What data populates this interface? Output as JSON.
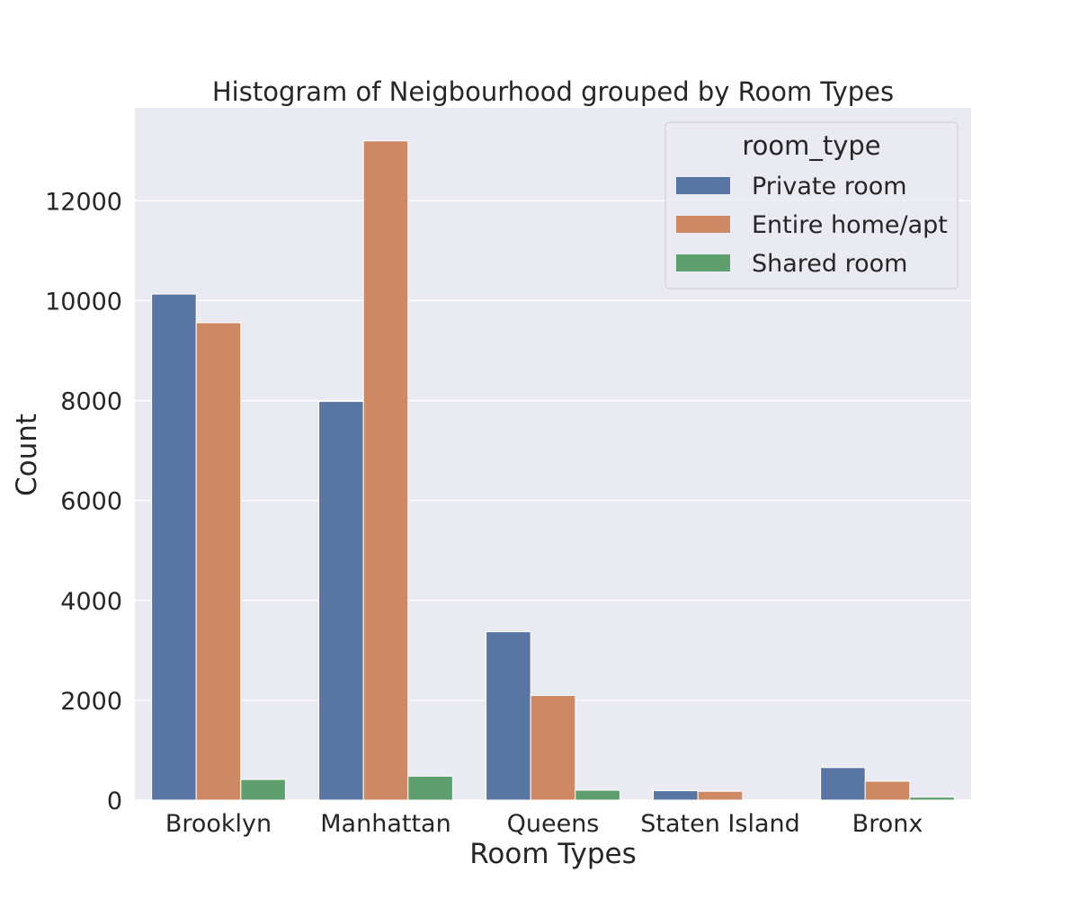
{
  "chart_data": {
    "type": "bar",
    "title": "Histogram of Neigbourhood grouped by Room Types",
    "xlabel": "Room Types",
    "ylabel": "Count",
    "categories": [
      "Brooklyn",
      "Manhattan",
      "Queens",
      "Staten Island",
      "Bronx"
    ],
    "series": [
      {
        "name": "Private room",
        "values": [
          10132,
          7982,
          3372,
          188,
          652
        ]
      },
      {
        "name": "Entire home/apt",
        "values": [
          9559,
          13199,
          2096,
          176,
          379
        ]
      },
      {
        "name": "Shared room",
        "values": [
          413,
          480,
          198,
          9,
          60
        ]
      }
    ],
    "ylim": [
      0,
      13860
    ],
    "yticks": [
      0,
      2000,
      4000,
      6000,
      8000,
      10000,
      12000
    ],
    "grid": true,
    "legend": {
      "title": "room_type",
      "placement": "top-right"
    },
    "colors": {
      "Private room": "#5975a4",
      "Entire home/apt": "#cc8963",
      "Shared room": "#5f9e6e",
      "plot_background": "#eaeaf2",
      "grid": "#ffffff"
    }
  }
}
